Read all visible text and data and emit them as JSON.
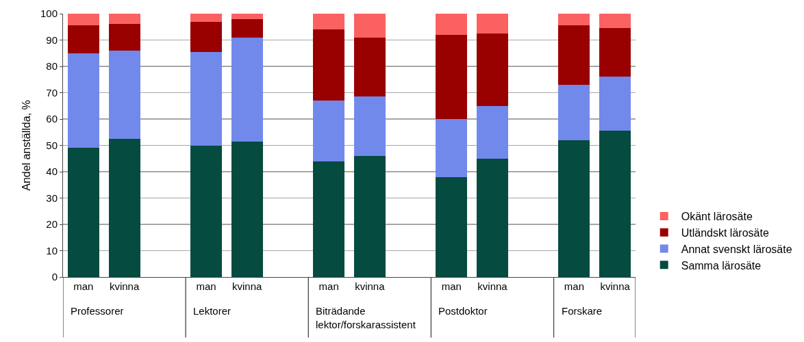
{
  "chart_data": {
    "type": "bar",
    "stacked": true,
    "ylabel": "Andel anställda, %",
    "categories": [
      "man",
      "kvinna",
      null,
      "man",
      "kvinna",
      null,
      "man",
      "kvinna",
      null,
      "man",
      "kvinna",
      null,
      "man",
      "kvinna"
    ],
    "series": [
      {
        "name": "Samma lärosäte",
        "color": "#064b40",
        "values": [
          49,
          52.5,
          null,
          50,
          51.5,
          null,
          44,
          46,
          null,
          38,
          45,
          null,
          52,
          55.5
        ]
      },
      {
        "name": "Annat svenskt lärosäte",
        "color": "#7289ec",
        "values": [
          36,
          33.5,
          null,
          35.5,
          39.5,
          null,
          23,
          22.5,
          null,
          22,
          20,
          null,
          21,
          20.5
        ]
      },
      {
        "name": "Utländskt lärosäte",
        "color": "#990000",
        "values": [
          10.5,
          10,
          null,
          11.5,
          7,
          null,
          27,
          22.5,
          null,
          32,
          27.5,
          null,
          22.5,
          18.5
        ]
      },
      {
        "name": "Okänt lärosäte",
        "color": "#fc6161",
        "values": [
          4.5,
          4,
          null,
          3,
          2,
          null,
          6,
          9,
          null,
          8,
          7.5,
          null,
          4.5,
          5.5
        ]
      }
    ],
    "ylim": [
      0,
      100
    ],
    "yticks": [
      0,
      10,
      20,
      30,
      40,
      50,
      60,
      70,
      80,
      90,
      100
    ],
    "grid": "y",
    "legend": "right",
    "annotations": [
      "Professorer",
      "Lektorer",
      "Biträdande lektor/forskarassistent",
      "Postdoktor",
      "Forskare"
    ]
  }
}
